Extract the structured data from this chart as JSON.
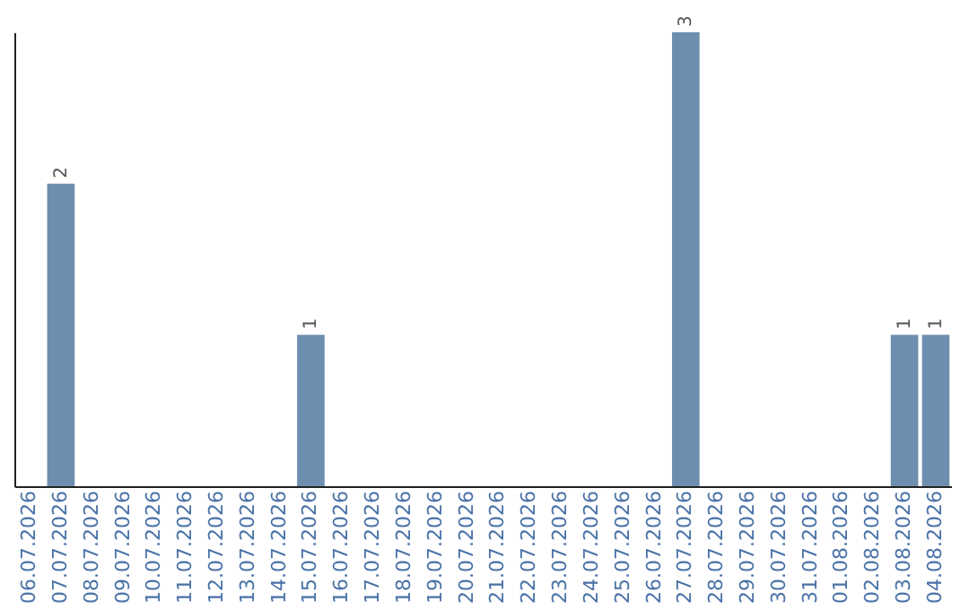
{
  "chart_data": {
    "type": "bar",
    "categories": [
      "06.07.2026",
      "07.07.2026",
      "08.07.2026",
      "09.07.2026",
      "10.07.2026",
      "11.07.2026",
      "12.07.2026",
      "13.07.2026",
      "14.07.2026",
      "15.07.2026",
      "16.07.2026",
      "17.07.2026",
      "18.07.2026",
      "19.07.2026",
      "20.07.2026",
      "21.07.2026",
      "22.07.2026",
      "23.07.2026",
      "24.07.2026",
      "25.07.2026",
      "26.07.2026",
      "27.07.2026",
      "28.07.2026",
      "29.07.2026",
      "30.07.2026",
      "31.07.2026",
      "01.08.2026",
      "02.08.2026",
      "03.08.2026",
      "04.08.2026"
    ],
    "values": [
      0,
      2,
      0,
      0,
      0,
      0,
      0,
      0,
      0,
      1,
      0,
      0,
      0,
      0,
      0,
      0,
      0,
      0,
      0,
      0,
      0,
      3,
      0,
      0,
      0,
      0,
      0,
      0,
      1,
      1
    ],
    "value_labels": [
      null,
      "2",
      null,
      null,
      null,
      null,
      null,
      null,
      null,
      "1",
      null,
      null,
      null,
      null,
      null,
      null,
      null,
      null,
      null,
      null,
      null,
      "3",
      null,
      null,
      null,
      null,
      null,
      null,
      "1",
      "1"
    ],
    "color": "#6d8eae",
    "grid": false,
    "tick_labels": "x"
  }
}
